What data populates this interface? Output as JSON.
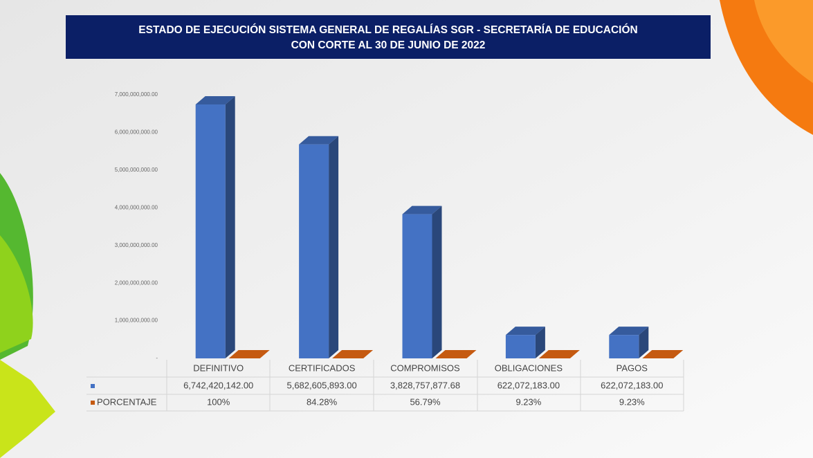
{
  "chart_data": {
    "type": "bar",
    "title": [
      "ESTADO DE EJECUCIÓN SISTEMA GENERAL DE REGALÍAS SGR - SECRETARÍA  DE EDUCACIÓN",
      "CON  CORTE AL 30 DE JUNIO DE 2022"
    ],
    "categories": [
      "DEFINITIVO",
      "CERTIFICADOS",
      "COMPROMISOS",
      "OBLIGACIONES",
      "PAGOS"
    ],
    "series": [
      {
        "color": "#4472c4",
        "values": [
          6742420142,
          5682605893,
          3828757877.68,
          622072183,
          622072183
        ],
        "value_labels": [
          "6,742,420,142.00",
          "5,682,605,893.00",
          "3,828,757,877.68",
          "622,072,183.00",
          "622,072,183.00"
        ]
      },
      {
        "name": "PORCENTAJE",
        "color": "#c55a11",
        "values": [
          100,
          84.28,
          56.79,
          9.23,
          9.23
        ],
        "value_labels": [
          "100%",
          "84.28%",
          "56.79%",
          "9.23%",
          "9.23%"
        ]
      }
    ],
    "ylim": [
      0,
      7000000000
    ],
    "yticks": [
      {
        "value": 0,
        "label": "-"
      },
      {
        "value": 1000000000,
        "label": "1,000,000,000.00"
      },
      {
        "value": 2000000000,
        "label": "2,000,000,000.00"
      },
      {
        "value": 3000000000,
        "label": "3,000,000,000.00"
      },
      {
        "value": 4000000000,
        "label": "4,000,000,000.00"
      },
      {
        "value": 5000000000,
        "label": "5,000,000,000.00"
      },
      {
        "value": 6000000000,
        "label": "6,000,000,000.00"
      },
      {
        "value": 7000000000,
        "label": "7,000,000,000.00"
      }
    ]
  }
}
